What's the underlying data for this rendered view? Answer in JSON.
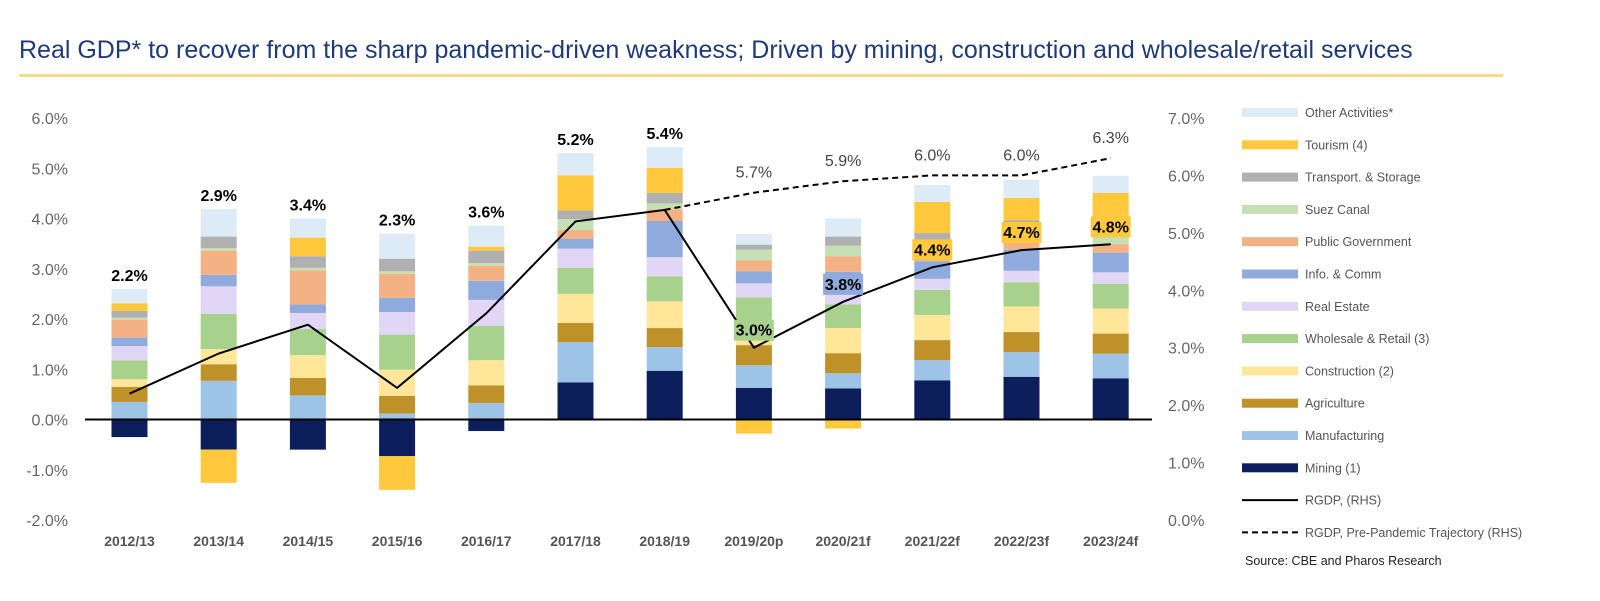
{
  "title": "Real GDP* to recover from the sharp pandemic-driven weakness; Driven by mining, construction and wholesale/retail services",
  "source": "Source: CBE and Pharos Research",
  "colors": {
    "Mining (1)": "#0c1f5c",
    "Manufacturing": "#9dc3e6",
    "Agriculture": "#bf9129",
    "Construction (2)": "#ffe699",
    "Wholesale & Retail (3)": "#a9d18e",
    "Real Estate": "#e2d6f7",
    "Info. & Comm": "#8faadc",
    "Public Government": "#f4b183",
    "Suez Canal": "#c5e0b4",
    "Transport. & Storage": "#b0b0b0",
    "Tourism (4)": "#ffc83d",
    "Other Activities*": "#ddebf7",
    "label_highlight": "#ffc83d",
    "label_green": "#a9d18e"
  },
  "chart_data": {
    "type": "bar",
    "stacked": true,
    "categories": [
      "2012/13",
      "2013/14",
      "2014/15",
      "2015/16",
      "2016/17",
      "2017/18",
      "2018/19",
      "2019/20p",
      "2020/21f",
      "2021/22f",
      "2022/23f",
      "2023/24f"
    ],
    "left_axis": {
      "ylim": [
        -0.02,
        0.06
      ],
      "ticks": [
        "-2.0%",
        "-1.0%",
        "0.0%",
        "1.0%",
        "2.0%",
        "3.0%",
        "4.0%",
        "5.0%",
        "6.0%"
      ]
    },
    "right_axis": {
      "ylim": [
        0.0,
        0.07
      ],
      "ticks": [
        "0.0%",
        "1.0%",
        "2.0%",
        "3.0%",
        "4.0%",
        "5.0%",
        "6.0%",
        "7.0%"
      ]
    },
    "series": [
      {
        "name": "Mining (1)",
        "values": [
          -0.0035,
          -0.006,
          -0.006,
          -0.0073,
          -0.0023,
          0.0074,
          0.0097,
          0.0063,
          0.0062,
          0.0078,
          0.0085,
          0.0082
        ]
      },
      {
        "name": "Manufacturing",
        "values": [
          0.0035,
          0.0077,
          0.0048,
          0.0012,
          0.0033,
          0.008,
          0.0047,
          0.0045,
          0.003,
          0.004,
          0.0049,
          0.0049
        ]
      },
      {
        "name": "Agriculture",
        "values": [
          0.003,
          0.0033,
          0.0035,
          0.0035,
          0.0035,
          0.0038,
          0.0038,
          0.004,
          0.004,
          0.004,
          0.004,
          0.004
        ]
      },
      {
        "name": "Construction (2)",
        "values": [
          0.0015,
          0.003,
          0.0045,
          0.0052,
          0.005,
          0.0058,
          0.0053,
          0.0042,
          0.005,
          0.005,
          0.0051,
          0.005
        ]
      },
      {
        "name": "Wholesale & Retail (3)",
        "values": [
          0.0038,
          0.007,
          0.0052,
          0.007,
          0.0068,
          0.0052,
          0.005,
          0.0053,
          0.0047,
          0.005,
          0.0048,
          0.0049
        ]
      },
      {
        "name": "Real Estate",
        "values": [
          0.0028,
          0.0055,
          0.0032,
          0.0045,
          0.0052,
          0.0038,
          0.0038,
          0.0028,
          0.0029,
          0.0022,
          0.0023,
          0.0023
        ]
      },
      {
        "name": "Info. & Comm",
        "values": [
          0.0017,
          0.0023,
          0.0017,
          0.0028,
          0.0038,
          0.002,
          0.0072,
          0.0024,
          0.0036,
          0.0035,
          0.0042,
          0.0039
        ]
      },
      {
        "name": "Public Government",
        "values": [
          0.0035,
          0.0048,
          0.0068,
          0.0048,
          0.003,
          0.0017,
          0.0023,
          0.0022,
          0.0031,
          0.0018,
          0.0018,
          0.0017
        ]
      },
      {
        "name": "Suez Canal",
        "values": [
          0.0005,
          0.0005,
          0.0005,
          0.0005,
          0.0005,
          0.0022,
          0.0012,
          0.0021,
          0.0021,
          0.0022,
          0.0021,
          0.0022
        ]
      },
      {
        "name": "Transport. & Storage",
        "values": [
          0.0013,
          0.0023,
          0.0023,
          0.0025,
          0.0025,
          0.0017,
          0.0021,
          0.001,
          0.0018,
          0.0016,
          0.0019,
          0.0018
        ]
      },
      {
        "name": "Tourism (4)",
        "values": [
          0.0015,
          -0.0066,
          0.0037,
          -0.0067,
          0.0008,
          0.007,
          0.005,
          -0.0028,
          -0.0018,
          0.0062,
          0.0045,
          0.0062
        ]
      },
      {
        "name": "Other Activities*",
        "values": [
          0.0029,
          0.0055,
          0.0038,
          0.005,
          0.0042,
          0.0044,
          0.0041,
          0.0021,
          0.0036,
          0.0034,
          0.0036,
          0.0034
        ]
      }
    ],
    "lines": [
      {
        "name": "RGDP, (RHS)",
        "axis": "right",
        "style": "solid",
        "values": [
          0.022,
          0.029,
          0.034,
          0.023,
          0.036,
          0.052,
          0.054,
          0.03,
          0.038,
          0.044,
          0.047,
          0.048
        ]
      },
      {
        "name": "RGDP, Pre-Pandemic Trajectory (RHS)",
        "axis": "right",
        "style": "dashed",
        "start_index": 6,
        "values": [
          0.054,
          0.057,
          0.059,
          0.06,
          0.06,
          0.063
        ]
      }
    ],
    "labels": {
      "actual": [
        {
          "index": 0,
          "text": "2.2%"
        },
        {
          "index": 1,
          "text": "2.9%"
        },
        {
          "index": 2,
          "text": "3.4%"
        },
        {
          "index": 3,
          "text": "2.3%"
        },
        {
          "index": 4,
          "text": "3.6%"
        },
        {
          "index": 5,
          "text": "5.2%"
        },
        {
          "index": 6,
          "text": "5.4%"
        },
        {
          "index": 7,
          "text": "3.0%",
          "highlight": "green"
        },
        {
          "index": 8,
          "text": "3.8%",
          "highlight": "blue"
        },
        {
          "index": 9,
          "text": "4.4%",
          "highlight": "yellow"
        },
        {
          "index": 10,
          "text": "4.7%",
          "highlight": "yellow"
        },
        {
          "index": 11,
          "text": "4.8%",
          "highlight": "yellow"
        }
      ],
      "trajectory": [
        {
          "index": 7,
          "text": "5.7%"
        },
        {
          "index": 8,
          "text": "5.9%"
        },
        {
          "index": 9,
          "text": "6.0%"
        },
        {
          "index": 10,
          "text": "6.0%"
        },
        {
          "index": 11,
          "text": "6.3%"
        }
      ]
    },
    "legend": {
      "position": "right",
      "entries": [
        "Other Activities*",
        "Tourism (4)",
        "Transport. & Storage",
        "Suez Canal",
        "Public Government",
        "Info. & Comm",
        "Real Estate",
        "Wholesale & Retail (3)",
        "Construction (2)",
        "Agriculture",
        "Manufacturing",
        "Mining (1)",
        "RGDP, (RHS)",
        "RGDP, Pre-Pandemic Trajectory (RHS)"
      ]
    },
    "grid": false
  }
}
